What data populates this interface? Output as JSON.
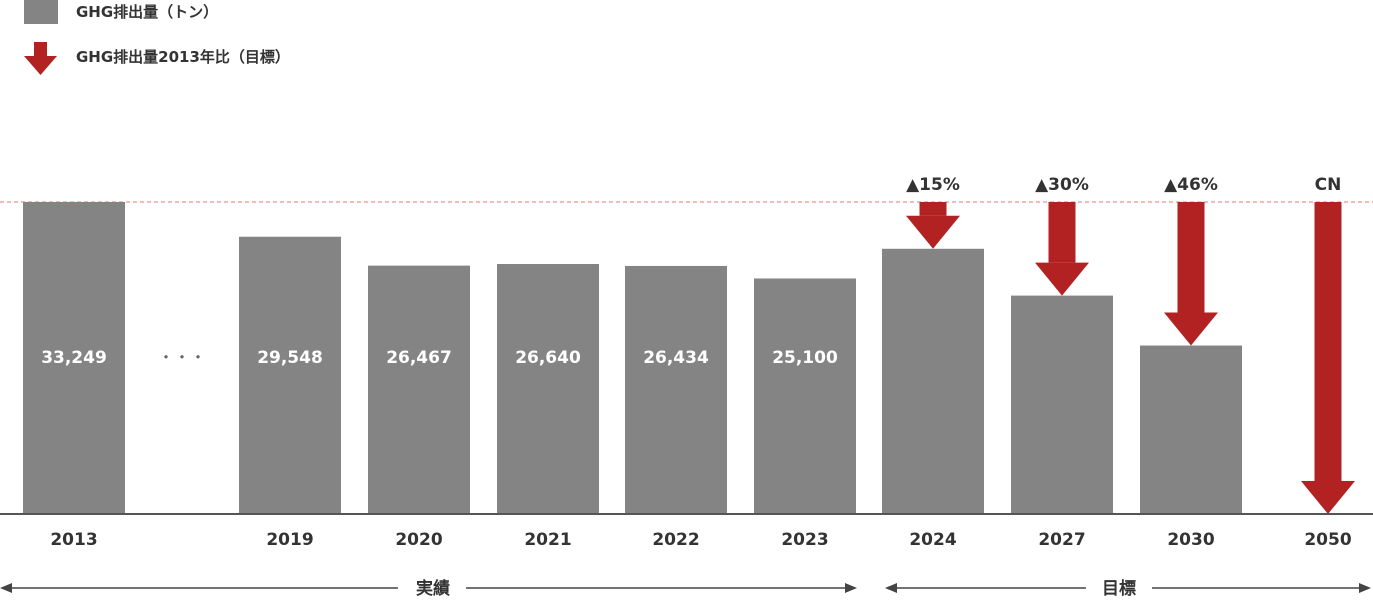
{
  "legend": {
    "bar_label": "GHG排出量（トン）",
    "arrow_label": "GHG排出量2013年比（目標）"
  },
  "colors": {
    "bar": "#848484",
    "arrow": "#b22222",
    "axis": "#555555",
    "baseline_dash": "#e07a7a",
    "text": "#333333",
    "bar_text": "#ffffff"
  },
  "ellipsis": "・・・",
  "periods": {
    "actual_label": "実績",
    "target_label": "目標"
  },
  "chart_data": {
    "type": "bar",
    "categories": [
      "2013",
      "2019",
      "2020",
      "2021",
      "2022",
      "2023",
      "2024",
      "2027",
      "2030",
      "2050"
    ],
    "values": [
      33249,
      29548,
      26467,
      26640,
      26434,
      25100,
      28262,
      23274,
      17954,
      0
    ],
    "value_labels": [
      "33,249",
      "29,548",
      "26,467",
      "26,640",
      "26,434",
      "25,100",
      "",
      "",
      "",
      ""
    ],
    "reduction_targets": [
      {
        "year": "2024",
        "label": "▲15%",
        "reduction_pct": 15
      },
      {
        "year": "2027",
        "label": "▲30%",
        "reduction_pct": 30
      },
      {
        "year": "2030",
        "label": "▲46%",
        "reduction_pct": 46
      },
      {
        "year": "2050",
        "label": "CN",
        "reduction_pct": 100
      }
    ],
    "baseline": 33249,
    "ylim": [
      0,
      33249
    ],
    "grid": false,
    "legend_position": "top-left"
  }
}
